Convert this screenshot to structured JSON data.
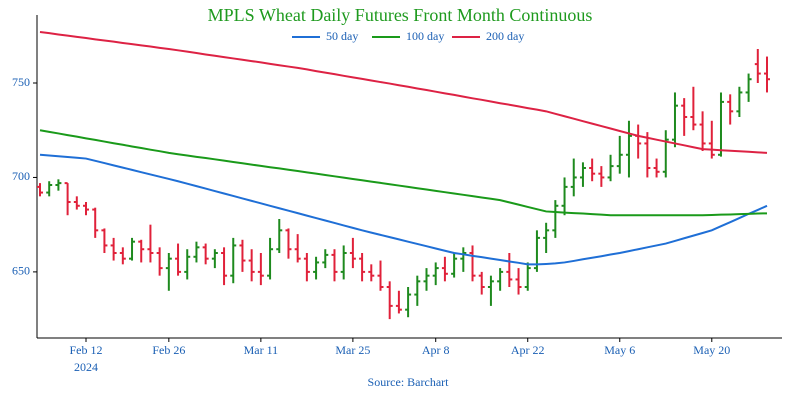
{
  "chart_data": {
    "type": "ohlc",
    "title": "MPLS Wheat Daily Futures Front Month Continuous",
    "source": "Source: Barchart",
    "x": [
      "2024-02-05",
      "2024-02-06",
      "2024-02-07",
      "2024-02-08",
      "2024-02-09",
      "2024-02-12",
      "2024-02-13",
      "2024-02-14",
      "2024-02-15",
      "2024-02-16",
      "2024-02-20",
      "2024-02-21",
      "2024-02-22",
      "2024-02-23",
      "2024-02-26",
      "2024-02-27",
      "2024-02-28",
      "2024-02-29",
      "2024-03-01",
      "2024-03-04",
      "2024-03-05",
      "2024-03-06",
      "2024-03-07",
      "2024-03-08",
      "2024-03-11",
      "2024-03-12",
      "2024-03-13",
      "2024-03-14",
      "2024-03-15",
      "2024-03-18",
      "2024-03-19",
      "2024-03-20",
      "2024-03-21",
      "2024-03-22",
      "2024-03-25",
      "2024-03-26",
      "2024-03-27",
      "2024-03-28",
      "2024-04-01",
      "2024-04-02",
      "2024-04-03",
      "2024-04-04",
      "2024-04-05",
      "2024-04-08",
      "2024-04-09",
      "2024-04-10",
      "2024-04-11",
      "2024-04-12",
      "2024-04-15",
      "2024-04-16",
      "2024-04-17",
      "2024-04-18",
      "2024-04-19",
      "2024-04-22",
      "2024-04-23",
      "2024-04-24",
      "2024-04-25",
      "2024-04-26",
      "2024-04-29",
      "2024-04-30",
      "2024-05-01",
      "2024-05-02",
      "2024-05-03",
      "2024-05-06",
      "2024-05-07",
      "2024-05-08",
      "2024-05-09",
      "2024-05-10",
      "2024-05-13",
      "2024-05-14",
      "2024-05-15",
      "2024-05-16",
      "2024-05-17",
      "2024-05-20",
      "2024-05-21",
      "2024-05-22",
      "2024-05-23",
      "2024-05-24",
      "2024-05-28",
      "2024-05-29"
    ],
    "open": [
      695,
      692,
      696,
      697,
      687,
      685,
      683,
      672,
      664,
      660,
      657,
      666,
      662,
      660,
      652,
      657,
      650,
      658,
      663,
      657,
      660,
      648,
      664,
      656,
      650,
      648,
      662,
      672,
      662,
      657,
      650,
      655,
      659,
      650,
      660,
      657,
      650,
      648,
      642,
      632,
      630,
      638,
      645,
      648,
      652,
      649,
      657,
      660,
      648,
      642,
      645,
      650,
      646,
      642,
      652,
      668,
      672,
      685,
      695,
      700,
      705,
      702,
      700,
      706,
      712,
      722,
      718,
      705,
      703,
      720,
      738,
      732,
      728,
      718,
      712,
      740,
      735,
      745,
      760,
      755
    ],
    "high": [
      697,
      698,
      699,
      697,
      690,
      687,
      684,
      673,
      668,
      663,
      668,
      667,
      675,
      663,
      660,
      665,
      662,
      666,
      665,
      662,
      663,
      668,
      667,
      662,
      660,
      668,
      678,
      673,
      670,
      660,
      658,
      662,
      662,
      664,
      668,
      660,
      654,
      656,
      645,
      640,
      642,
      648,
      652,
      655,
      658,
      660,
      663,
      664,
      650,
      648,
      652,
      660,
      652,
      655,
      672,
      676,
      688,
      700,
      710,
      708,
      710,
      706,
      712,
      722,
      730,
      728,
      724,
      710,
      725,
      745,
      742,
      748,
      735,
      730,
      745,
      744,
      748,
      755,
      768,
      764
    ],
    "low": [
      690,
      690,
      693,
      680,
      683,
      680,
      668,
      660,
      656,
      654,
      656,
      655,
      655,
      648,
      640,
      648,
      646,
      655,
      654,
      652,
      643,
      644,
      650,
      645,
      643,
      646,
      660,
      657,
      655,
      645,
      646,
      652,
      645,
      646,
      652,
      645,
      645,
      640,
      625,
      628,
      626,
      632,
      640,
      643,
      645,
      647,
      650,
      645,
      638,
      632,
      640,
      642,
      638,
      640,
      650,
      660,
      668,
      680,
      690,
      695,
      698,
      695,
      698,
      702,
      700,
      710,
      700,
      700,
      700,
      716,
      722,
      725,
      714,
      710,
      711,
      728,
      732,
      740,
      750,
      745
    ],
    "close": [
      692,
      696,
      697,
      687,
      685,
      683,
      672,
      664,
      660,
      657,
      666,
      662,
      660,
      652,
      657,
      650,
      658,
      663,
      657,
      660,
      648,
      664,
      656,
      650,
      648,
      662,
      672,
      662,
      657,
      650,
      655,
      659,
      650,
      660,
      657,
      650,
      648,
      642,
      632,
      630,
      638,
      645,
      648,
      652,
      649,
      657,
      660,
      648,
      642,
      645,
      650,
      646,
      642,
      652,
      668,
      672,
      685,
      695,
      700,
      705,
      702,
      700,
      706,
      712,
      722,
      718,
      705,
      703,
      720,
      738,
      732,
      728,
      718,
      712,
      740,
      735,
      745,
      752,
      755,
      752
    ],
    "up_color": "#1e8a1e",
    "down_color": "#e0213a",
    "series": [
      {
        "name": "50 day",
        "color": "#1f6fd6",
        "values": [
          712,
          711.6,
          711.2,
          710.8,
          710.4,
          710,
          708.8,
          707.6,
          706.4,
          705.2,
          704,
          702.8,
          701.6,
          700.4,
          699.2,
          698,
          696.7,
          695.4,
          694.1,
          692.8,
          691.5,
          690.2,
          688.9,
          687.6,
          686.3,
          685,
          683.7,
          682.4,
          681.1,
          679.8,
          678.5,
          677.2,
          675.9,
          674.6,
          673.3,
          672,
          670.8,
          669.6,
          668.4,
          667.2,
          666,
          664.8,
          663.6,
          662.4,
          661.2,
          660,
          659.3,
          658.5,
          657.8,
          657,
          656.3,
          655.5,
          654.8,
          654,
          654,
          654.2,
          654.5,
          655,
          655.8,
          656.7,
          657.5,
          658.3,
          659.2,
          660,
          661,
          662,
          663,
          664,
          665,
          666.4,
          667.8,
          669.2,
          670.6,
          672,
          674.2,
          676.3,
          678.5,
          680.7,
          682.8,
          685
        ]
      },
      {
        "name": "100 day",
        "color": "#1a9a1a",
        "values": [
          725,
          724.1,
          723.3,
          722.4,
          721.6,
          720.7,
          719.9,
          719,
          718.1,
          717.3,
          716.4,
          715.6,
          714.7,
          713.9,
          713,
          712.3,
          711.6,
          710.9,
          710.3,
          709.6,
          708.9,
          708.2,
          707.5,
          706.8,
          706.1,
          705.4,
          704.8,
          704.1,
          703.4,
          702.7,
          702,
          701.3,
          700.6,
          699.9,
          699.2,
          698.5,
          697.8,
          697.1,
          696.4,
          695.7,
          695,
          694.3,
          693.6,
          692.9,
          692.2,
          691.5,
          690.8,
          690.1,
          689.4,
          688.7,
          688,
          686.8,
          685.6,
          684.4,
          683.2,
          682,
          681.7,
          681.4,
          681.1,
          680.9,
          680.6,
          680.3,
          680,
          680,
          680,
          680,
          680,
          680,
          680,
          680,
          680,
          680,
          680,
          680.1,
          680.3,
          680.4,
          680.6,
          680.7,
          680.9,
          681
        ]
      },
      {
        "name": "200 day",
        "color": "#dd2244",
        "values": [
          777,
          776.4,
          775.7,
          775.1,
          774.4,
          773.8,
          773.1,
          772.5,
          771.9,
          771.2,
          770.6,
          769.9,
          769.3,
          768.6,
          768,
          767.3,
          766.6,
          765.9,
          765.1,
          764.4,
          763.7,
          763,
          762.3,
          761.6,
          760.9,
          760.1,
          759.4,
          758.7,
          758,
          757.2,
          756.3,
          755.5,
          754.7,
          753.8,
          753,
          752.2,
          751.3,
          750.5,
          749.7,
          748.8,
          748,
          747.1,
          746.3,
          745.4,
          744.5,
          743.7,
          742.8,
          741.9,
          741.1,
          740.2,
          739.3,
          738.5,
          737.6,
          736.7,
          735.9,
          735,
          733.7,
          732.4,
          731.1,
          729.8,
          728.5,
          727.2,
          725.9,
          724.6,
          723.3,
          722,
          721,
          720,
          719,
          718,
          717,
          716,
          715,
          714.7,
          714.4,
          714.1,
          713.9,
          713.6,
          713.3,
          713
        ]
      }
    ],
    "xticks": [
      {
        "value": "2024-02-12",
        "label": "Feb 12"
      },
      {
        "value": "2024-02-26",
        "label": "Feb 26"
      },
      {
        "value": "2024-03-11",
        "label": "Mar 11"
      },
      {
        "value": "2024-03-25",
        "label": "Mar 25"
      },
      {
        "value": "2024-04-08",
        "label": "Apr 8"
      },
      {
        "value": "2024-04-22",
        "label": "Apr 22"
      },
      {
        "value": "2024-05-06",
        "label": "May 6"
      },
      {
        "value": "2024-05-20",
        "label": "May 20"
      }
    ],
    "x_year_label": "2024",
    "ylim": [
      615,
      786
    ],
    "yticks": [
      650,
      700,
      750
    ],
    "grid": false,
    "title_color": "#1e9a1e",
    "text_color": "#1a5fb4"
  }
}
